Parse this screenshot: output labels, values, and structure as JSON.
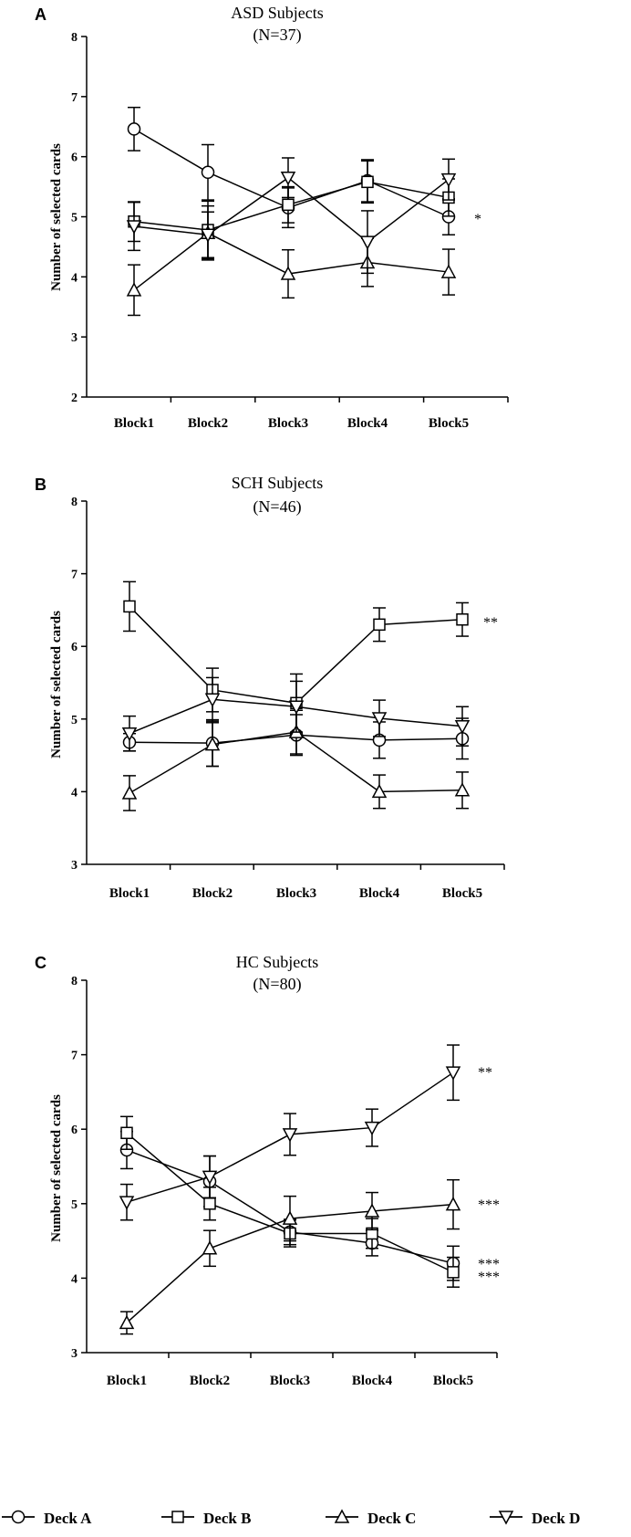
{
  "figure": {
    "decks": [
      {
        "name": "Deck A",
        "marker": "circle"
      },
      {
        "name": "Deck B",
        "marker": "square"
      },
      {
        "name": "Deck C",
        "marker": "triangle-up"
      },
      {
        "name": "Deck D",
        "marker": "triangle-down"
      }
    ]
  },
  "chart_data": [
    {
      "type": "line",
      "panel": "A",
      "title": "ASD Subjects",
      "subtitle": "(N=37)",
      "xlabel": "",
      "ylabel": "Number of selected cards",
      "categories": [
        "Block1",
        "Block2",
        "Block3",
        "Block4",
        "Block5"
      ],
      "ylim": [
        2,
        8
      ],
      "yticks": [
        2,
        3,
        4,
        5,
        6,
        7,
        8
      ],
      "series": [
        {
          "name": "Deck A",
          "marker": "circle",
          "values": [
            6.46,
            5.74,
            5.15,
            5.6,
            5.0
          ],
          "errors": [
            0.36,
            0.46,
            0.33,
            0.35,
            0.3
          ]
        },
        {
          "name": "Deck B",
          "marker": "square",
          "values": [
            4.92,
            4.78,
            5.2,
            5.58,
            5.32
          ],
          "errors": [
            0.33,
            0.48,
            0.3,
            0.35,
            0.31
          ]
        },
        {
          "name": "Deck C",
          "marker": "triangle-up",
          "values": [
            3.78,
            4.73,
            4.05,
            4.24,
            4.08
          ],
          "errors": [
            0.42,
            0.45,
            0.4,
            0.4,
            0.38
          ]
        },
        {
          "name": "Deck D",
          "marker": "triangle-down",
          "values": [
            4.84,
            4.7,
            5.65,
            4.58,
            5.62
          ],
          "errors": [
            0.4,
            0.38,
            0.33,
            0.52,
            0.34
          ]
        }
      ],
      "annotations": [
        {
          "text": "*",
          "series": "Deck A"
        }
      ]
    },
    {
      "type": "line",
      "panel": "B",
      "title": "SCH Subjects",
      "subtitle": "(N=46)",
      "xlabel": "",
      "ylabel": "Number of selected cards",
      "categories": [
        "Block1",
        "Block2",
        "Block3",
        "Block4",
        "Block5"
      ],
      "ylim": [
        3,
        8
      ],
      "yticks": [
        3,
        4,
        5,
        6,
        7,
        8
      ],
      "series": [
        {
          "name": "Deck A",
          "marker": "circle",
          "values": [
            4.68,
            4.67,
            4.78,
            4.71,
            4.73
          ],
          "errors": [
            0.12,
            0.32,
            0.28,
            0.25,
            0.28
          ]
        },
        {
          "name": "Deck B",
          "marker": "square",
          "values": [
            6.55,
            5.4,
            5.22,
            6.3,
            6.37
          ],
          "errors": [
            0.34,
            0.3,
            0.4,
            0.23,
            0.23
          ]
        },
        {
          "name": "Deck C",
          "marker": "triangle-up",
          "values": [
            3.98,
            4.65,
            4.82,
            4.0,
            4.02
          ],
          "errors": [
            0.24,
            0.3,
            0.3,
            0.23,
            0.25
          ]
        },
        {
          "name": "Deck D",
          "marker": "triangle-down",
          "values": [
            4.8,
            5.27,
            5.17,
            5.01,
            4.9
          ],
          "errors": [
            0.24,
            0.3,
            0.35,
            0.25,
            0.27
          ]
        }
      ],
      "annotations": [
        {
          "text": "**",
          "series": "Deck B"
        }
      ]
    },
    {
      "type": "line",
      "panel": "C",
      "title": "HC Subjects",
      "subtitle": "(N=80)",
      "xlabel": "",
      "ylabel": "Number of selected cards",
      "categories": [
        "Block1",
        "Block2",
        "Block3",
        "Block4",
        "Block5"
      ],
      "ylim": [
        3,
        8
      ],
      "yticks": [
        3,
        4,
        5,
        6,
        7,
        8
      ],
      "series": [
        {
          "name": "Deck A",
          "marker": "circle",
          "values": [
            5.72,
            5.3,
            4.62,
            4.47,
            4.2
          ],
          "errors": [
            0.25,
            0.34,
            0.17,
            0.17,
            0.23
          ]
        },
        {
          "name": "Deck B",
          "marker": "square",
          "values": [
            5.95,
            5.0,
            4.6,
            4.6,
            4.08
          ],
          "errors": [
            0.22,
            0.22,
            0.18,
            0.2,
            0.2
          ]
        },
        {
          "name": "Deck C",
          "marker": "triangle-up",
          "values": [
            3.4,
            4.4,
            4.8,
            4.9,
            4.99
          ],
          "errors": [
            0.15,
            0.24,
            0.3,
            0.25,
            0.33
          ]
        },
        {
          "name": "Deck D",
          "marker": "triangle-down",
          "values": [
            5.02,
            5.36,
            5.93,
            6.02,
            6.76
          ],
          "errors": [
            0.24,
            0.28,
            0.28,
            0.25,
            0.37
          ]
        }
      ],
      "annotations": [
        {
          "text": "**",
          "series": "Deck D"
        },
        {
          "text": "***",
          "series": "Deck C"
        },
        {
          "text": "***",
          "series": "Deck A"
        },
        {
          "text": "***",
          "series": "Deck B"
        }
      ]
    }
  ]
}
